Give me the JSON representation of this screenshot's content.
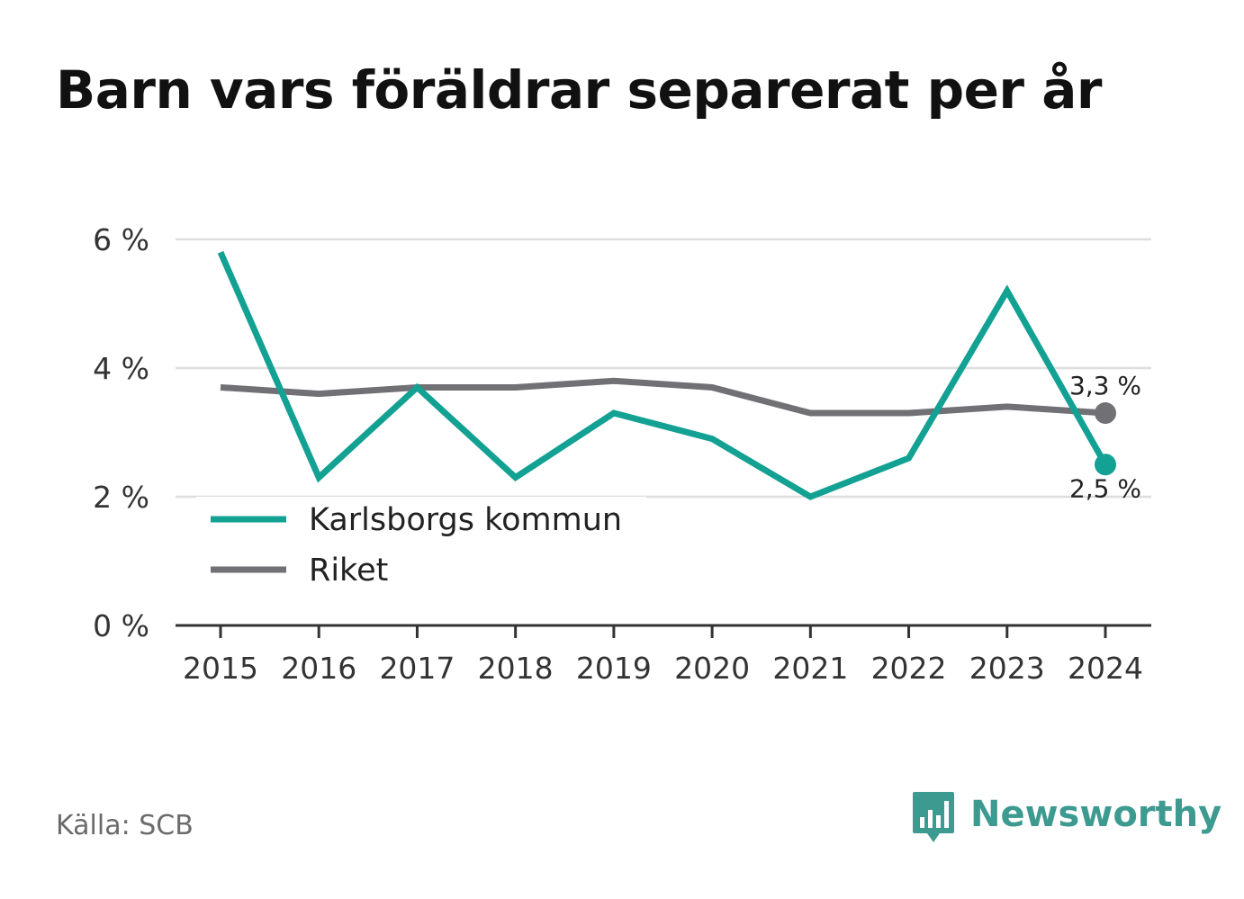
{
  "title": "Barn vars föräldrar separerat per år",
  "source": "Källa: SCB",
  "brand": {
    "name": "Newsworthy",
    "icon": "bar-chart-speech-bubble-icon",
    "color": "#3d9a91"
  },
  "chart_data": {
    "type": "line",
    "x": [
      "2015",
      "2016",
      "2017",
      "2018",
      "2019",
      "2020",
      "2021",
      "2022",
      "2023",
      "2024"
    ],
    "series": [
      {
        "name": "Karlsborgs kommun",
        "color": "#12a192",
        "values": [
          5.8,
          2.3,
          3.7,
          2.3,
          3.3,
          2.9,
          2.0,
          2.6,
          5.2,
          2.5
        ],
        "end_label": "2,5 %"
      },
      {
        "name": "Riket",
        "color": "#717075",
        "values": [
          3.7,
          3.6,
          3.7,
          3.7,
          3.8,
          3.7,
          3.3,
          3.3,
          3.4,
          3.3
        ],
        "end_label": "3,3 %"
      }
    ],
    "y_ticks": [
      0,
      2,
      4,
      6
    ],
    "y_tick_labels": [
      "0 %",
      "2 %",
      "4 %",
      "6 %"
    ],
    "ylim": [
      0,
      6
    ],
    "grid": true,
    "legend": "bottom-left"
  }
}
